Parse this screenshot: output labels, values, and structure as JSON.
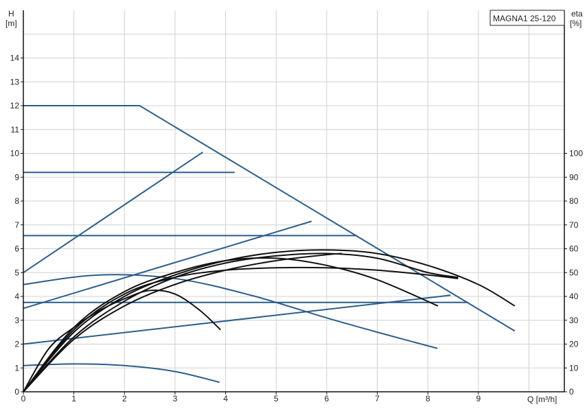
{
  "chart_data": {
    "type": "line",
    "title": "MAGNA1 25-120",
    "xlabel": "Q [m³/h]",
    "ylabel_left": [
      "H",
      "[m]"
    ],
    "ylabel_right": [
      "eta",
      "[%]"
    ],
    "xlim": [
      0,
      10.7
    ],
    "ylim_left": [
      0,
      16
    ],
    "ylim_right": [
      0,
      160
    ],
    "x_ticks": [
      0,
      1,
      2,
      3,
      4,
      5,
      6,
      7,
      8,
      9
    ],
    "y_left_ticks": [
      0,
      1,
      2,
      3,
      4,
      5,
      6,
      7,
      8,
      9,
      10,
      11,
      12,
      13,
      14
    ],
    "y_right_ticks": [
      0,
      10,
      20,
      30,
      40,
      50,
      60,
      70,
      80,
      90,
      100
    ],
    "grid": true,
    "colors": {
      "head": "#2a5d8c",
      "efficiency": "#111111",
      "grid": "#d0d0d0"
    },
    "head_curves_m": [
      {
        "points": [
          [
            0,
            12
          ],
          [
            2.3,
            12
          ],
          [
            9.72,
            2.55
          ]
        ],
        "smooth": false
      },
      {
        "points": [
          [
            0,
            9.2
          ],
          [
            4.18,
            9.2
          ]
        ],
        "smooth": false
      },
      {
        "points": [
          [
            0,
            6.55
          ],
          [
            6.6,
            6.55
          ]
        ],
        "smooth": false
      },
      {
        "points": [
          [
            0,
            3.75
          ],
          [
            8.8,
            3.75
          ]
        ],
        "smooth": false
      },
      {
        "points": [
          [
            0,
            5.0
          ],
          [
            3.55,
            10.05
          ]
        ],
        "smooth": false
      },
      {
        "points": [
          [
            0,
            3.5
          ],
          [
            5.7,
            7.15
          ]
        ],
        "smooth": false
      },
      {
        "points": [
          [
            0,
            2.0
          ],
          [
            8.45,
            4.05
          ]
        ],
        "smooth": false
      },
      {
        "points": [
          [
            0,
            4.5
          ],
          [
            1.5,
            4.9
          ],
          [
            3,
            4.75
          ],
          [
            4.5,
            4.05
          ],
          [
            6,
            3.1
          ],
          [
            7,
            2.5
          ],
          [
            8.19,
            1.82
          ]
        ],
        "smooth": true
      },
      {
        "points": [
          [
            0,
            1.1
          ],
          [
            1,
            1.17
          ],
          [
            2,
            1.1
          ],
          [
            3,
            0.85
          ],
          [
            3.88,
            0.4
          ]
        ],
        "smooth": true
      }
    ],
    "efficiency_curves_pct": [
      {
        "points": [
          [
            0,
            0
          ],
          [
            0.5,
            18
          ],
          [
            1,
            27
          ],
          [
            1.5,
            34
          ],
          [
            2,
            39
          ],
          [
            2.5,
            42.5
          ],
          [
            3,
            41
          ],
          [
            3.5,
            34
          ],
          [
            3.9,
            26
          ]
        ]
      },
      {
        "points": [
          [
            0,
            0
          ],
          [
            1,
            27
          ],
          [
            2,
            42
          ],
          [
            3,
            50
          ],
          [
            4,
            55
          ],
          [
            5,
            56
          ],
          [
            6,
            53
          ],
          [
            7,
            47
          ],
          [
            8.2,
            36
          ]
        ]
      },
      {
        "points": [
          [
            0,
            0
          ],
          [
            1,
            25
          ],
          [
            2,
            40
          ],
          [
            3,
            49
          ],
          [
            4,
            55
          ],
          [
            5,
            58.5
          ],
          [
            6,
            59.5
          ],
          [
            7,
            58
          ],
          [
            8,
            53
          ],
          [
            9,
            45
          ],
          [
            9.72,
            36
          ]
        ]
      },
      {
        "points": [
          [
            0,
            0
          ],
          [
            1,
            26
          ],
          [
            2,
            41
          ],
          [
            3,
            48
          ],
          [
            4,
            51
          ],
          [
            5,
            52
          ],
          [
            6,
            52
          ],
          [
            7,
            51
          ],
          [
            8,
            49
          ],
          [
            8.6,
            47.5
          ]
        ]
      },
      {
        "points": [
          [
            0,
            0
          ],
          [
            1,
            22
          ],
          [
            2,
            36
          ],
          [
            3,
            45
          ],
          [
            4,
            51
          ],
          [
            5,
            55
          ],
          [
            6,
            57.5
          ],
          [
            6.3,
            58
          ]
        ]
      },
      {
        "points": [
          [
            0,
            0
          ],
          [
            1,
            23
          ],
          [
            2,
            38
          ],
          [
            3,
            48
          ],
          [
            4,
            54
          ],
          [
            5,
            57
          ],
          [
            6,
            58
          ],
          [
            7,
            56
          ],
          [
            8,
            50
          ],
          [
            8.6,
            48
          ]
        ]
      }
    ]
  }
}
